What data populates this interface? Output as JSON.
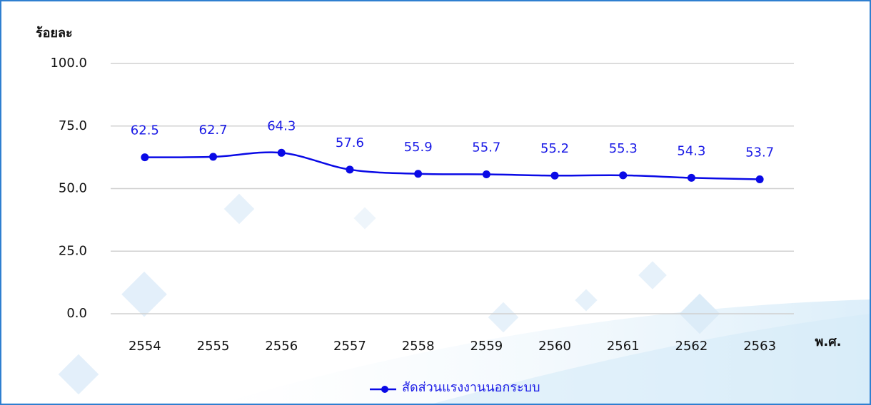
{
  "chart_data": {
    "type": "line",
    "ylabel": "ร้อยละ",
    "xlabel": "พ.ศ.",
    "categories": [
      "2554",
      "2555",
      "2556",
      "2557",
      "2558",
      "2559",
      "2560",
      "2561",
      "2562",
      "2563"
    ],
    "series": [
      {
        "name": "สัดส่วนแรงงานนอกระบบ",
        "color": "#0a0ae6",
        "values": [
          62.5,
          62.7,
          64.3,
          57.6,
          55.9,
          55.7,
          55.2,
          55.3,
          54.3,
          53.7
        ]
      }
    ],
    "ylim": [
      0,
      100
    ],
    "yticks": [
      {
        "value": 0,
        "label": "0.0"
      },
      {
        "value": 25,
        "label": "25.0"
      },
      {
        "value": 50,
        "label": "50.0"
      },
      {
        "value": 75,
        "label": "75.0"
      },
      {
        "value": 100,
        "label": "100.0"
      }
    ],
    "grid": true,
    "legend": "bottom"
  }
}
